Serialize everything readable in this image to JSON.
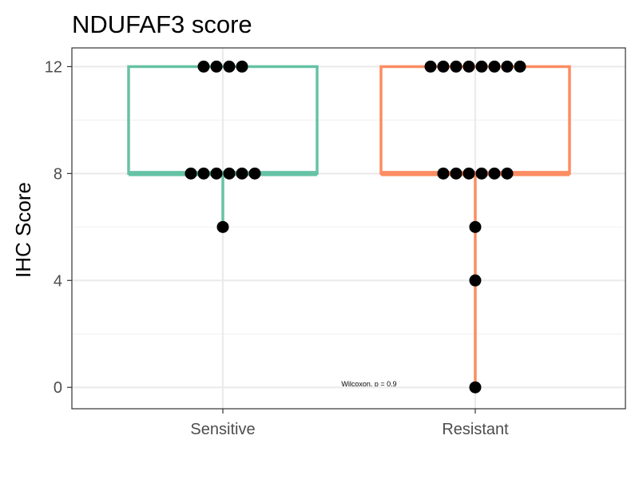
{
  "chart_data": {
    "type": "boxplot",
    "title": "NDUFAF3 score",
    "ylabel": "IHC Score",
    "xlabel": "",
    "categories": [
      "Sensitive",
      "Resistant"
    ],
    "ylim": [
      -0.8,
      12.7
    ],
    "yticks": [
      0,
      4,
      8,
      12
    ],
    "grid": true,
    "legend": "none",
    "annotation": "Wilcoxon, p = 0.9",
    "groups": [
      {
        "name": "Sensitive",
        "color": "#66c2a5",
        "box": {
          "lower_whisker": 6,
          "q1": 8,
          "median": 8,
          "q3": 12,
          "upper_whisker": 12
        },
        "points": [
          6,
          8,
          8,
          8,
          8,
          8,
          8,
          12,
          12,
          12,
          12
        ]
      },
      {
        "name": "Resistant",
        "color": "#fc8d62",
        "box": {
          "lower_whisker": 0,
          "q1": 8,
          "median": 8,
          "q3": 12,
          "upper_whisker": 12
        },
        "points": [
          0,
          4,
          6,
          8,
          8,
          8,
          8,
          8,
          8,
          12,
          12,
          12,
          12,
          12,
          12,
          12,
          12
        ]
      }
    ]
  }
}
